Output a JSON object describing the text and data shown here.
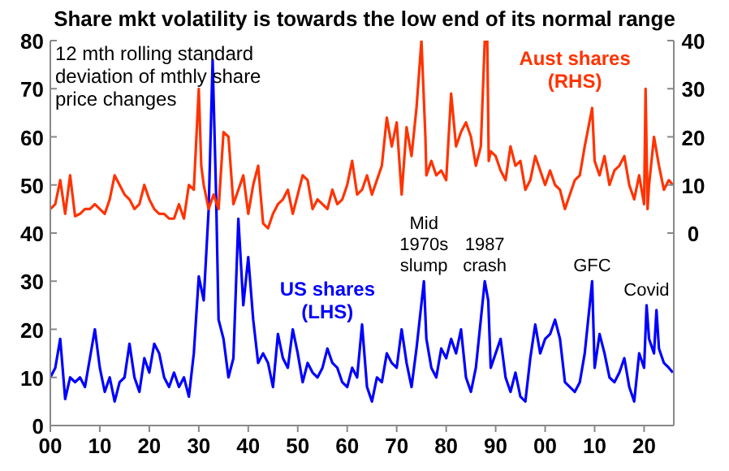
{
  "chart_data": {
    "type": "line",
    "title": "Share mkt volatility is towards the low end of its normal range",
    "xlim": [
      1900,
      2026
    ],
    "xticks": [
      {
        "value": 1900,
        "label": "00"
      },
      {
        "value": 1910,
        "label": "10"
      },
      {
        "value": 1920,
        "label": "20"
      },
      {
        "value": 1930,
        "label": "30"
      },
      {
        "value": 1940,
        "label": "40"
      },
      {
        "value": 1950,
        "label": "50"
      },
      {
        "value": 1960,
        "label": "60"
      },
      {
        "value": 1970,
        "label": "70"
      },
      {
        "value": 1980,
        "label": "80"
      },
      {
        "value": 1990,
        "label": "90"
      },
      {
        "value": 2000,
        "label": "00"
      },
      {
        "value": 2010,
        "label": "10"
      },
      {
        "value": 2020,
        "label": "20"
      }
    ],
    "ylim": [
      0,
      80
    ],
    "yticks": [
      0,
      10,
      20,
      30,
      40,
      50,
      60,
      70,
      80
    ],
    "y2lim": [
      -40,
      40
    ],
    "y2ticks": [
      0,
      10,
      20,
      30,
      40
    ],
    "grid": false,
    "annotations": [
      "12 mth rolling standard deviation of mthly share price changes",
      {
        "text": "Mid 1970s slump",
        "x": 1975.5,
        "y": 30
      },
      {
        "text": "1987 crash",
        "x": 1987.8,
        "y": 30
      },
      {
        "text": "GFC",
        "x": 2009.5,
        "y": 30
      },
      {
        "text": "Covid",
        "x": 2020.5,
        "y": 25
      }
    ],
    "series": [
      {
        "name": "US shares (LHS)",
        "color": "#0000ff",
        "x": [
          1900,
          1901,
          1902,
          1903,
          1904,
          1905,
          1906,
          1907,
          1908,
          1909,
          1910,
          1911,
          1912,
          1913,
          1914,
          1915,
          1916,
          1917,
          1918,
          1919,
          1920,
          1921,
          1922,
          1923,
          1924,
          1925,
          1926,
          1927,
          1928,
          1929,
          1930,
          1931,
          1932,
          1932.8,
          1933.5,
          1934,
          1935,
          1936,
          1937,
          1938,
          1939,
          1940,
          1941,
          1942,
          1943,
          1944,
          1945,
          1946,
          1947,
          1948,
          1949,
          1950,
          1951,
          1952,
          1953,
          1954,
          1955,
          1956,
          1957,
          1958,
          1959,
          1960,
          1961,
          1962,
          1963,
          1964,
          1965,
          1966,
          1967,
          1968,
          1969,
          1970,
          1971,
          1972,
          1973,
          1974,
          1975.5,
          1976,
          1977,
          1978,
          1979,
          1980,
          1981,
          1982,
          1983,
          1984,
          1985,
          1986,
          1987.8,
          1988.5,
          1989,
          1990,
          1991,
          1992,
          1993,
          1994,
          1995,
          1996,
          1997,
          1998,
          1999,
          2000,
          2001,
          2002,
          2003,
          2004,
          2005,
          2006,
          2007,
          2008,
          2009.5,
          2010,
          2011,
          2012,
          2013,
          2014,
          2015,
          2016,
          2017,
          2018,
          2019,
          2020,
          2020.5,
          2021,
          2022,
          2022.5,
          2023,
          2024,
          2025,
          2025.8
        ],
        "values": [
          10,
          12,
          18,
          5.5,
          10,
          9,
          10,
          8,
          14,
          20,
          12,
          7,
          10,
          5,
          9,
          10,
          17,
          10,
          7,
          14,
          11,
          17,
          15,
          10,
          8,
          11,
          8,
          10,
          6,
          15,
          31,
          26,
          45,
          76,
          48,
          22,
          18,
          10,
          14,
          43,
          25,
          35,
          22,
          13,
          15,
          13,
          8,
          19,
          14,
          12,
          20,
          15,
          9,
          13,
          11,
          10,
          12,
          16,
          13,
          12,
          9,
          8,
          12,
          10,
          21,
          8,
          5,
          10,
          9,
          15,
          13,
          12,
          20,
          13,
          8,
          16,
          30,
          18,
          12,
          10,
          16,
          14,
          18,
          15,
          20,
          10,
          7,
          12,
          30,
          26,
          12,
          15,
          18,
          10,
          7,
          11,
          6,
          5,
          14,
          21,
          15,
          18,
          19,
          22,
          18,
          9,
          8,
          7,
          9,
          15,
          30,
          12,
          19,
          15,
          10,
          9,
          11,
          14,
          8,
          5,
          15,
          12,
          25,
          18,
          15,
          24,
          16,
          13,
          12,
          11
        ]
      },
      {
        "name": "Aust shares (RHS)",
        "color": "#ff3300",
        "axis": "y2",
        "x": [
          1900,
          1901,
          1902,
          1903,
          1904,
          1905,
          1906,
          1907,
          1908,
          1909,
          1910,
          1911,
          1912,
          1913,
          1914,
          1915,
          1916,
          1917,
          1918,
          1919,
          1920,
          1921,
          1922,
          1923,
          1924,
          1925,
          1926,
          1927,
          1928,
          1929,
          1930,
          1930.5,
          1931,
          1932,
          1933,
          1934,
          1935,
          1936,
          1937,
          1938,
          1939,
          1940,
          1941,
          1942,
          1943,
          1944,
          1945,
          1946,
          1947,
          1948,
          1949,
          1950,
          1951,
          1952,
          1953,
          1954,
          1955,
          1956,
          1957,
          1958,
          1959,
          1960,
          1961,
          1962,
          1963,
          1964,
          1965,
          1966,
          1967,
          1968,
          1969,
          1970,
          1971,
          1972,
          1973,
          1974,
          1975,
          1975.8,
          1976,
          1977,
          1978,
          1979,
          1980,
          1981,
          1982,
          1983,
          1984,
          1985,
          1986,
          1987,
          1987.8,
          1988.3,
          1988.6,
          1989,
          1990,
          1991,
          1992,
          1993,
          1994,
          1995,
          1996,
          1997,
          1998,
          1999,
          2000,
          2001,
          2002,
          2003,
          2004,
          2005,
          2006,
          2007,
          2008,
          2009.5,
          2010,
          2011,
          2012,
          2013,
          2014,
          2015,
          2016,
          2017,
          2018,
          2019,
          2020,
          2020.3,
          2020.7,
          2021,
          2022,
          2023,
          2024,
          2025,
          2025.8
        ],
        "values": [
          5,
          6,
          11,
          4,
          12,
          3.5,
          4,
          5,
          5,
          6,
          5,
          4,
          7,
          12,
          10,
          8,
          7,
          5,
          6,
          10,
          7,
          5,
          4,
          4,
          3,
          3,
          6,
          3,
          10,
          9,
          30,
          14,
          10,
          5,
          8,
          5,
          21,
          20,
          6,
          9,
          12,
          4,
          10,
          14,
          2,
          1,
          4,
          6,
          7,
          9,
          4,
          8,
          12,
          11,
          5,
          7,
          6,
          5,
          9,
          6,
          7,
          10,
          15,
          8,
          9,
          12,
          8,
          11,
          14,
          24,
          18,
          23,
          8,
          22,
          16,
          26,
          40,
          20,
          12,
          15,
          12,
          13,
          11,
          29,
          18,
          21,
          23,
          20,
          14,
          18,
          40,
          40,
          15,
          17,
          16,
          13,
          11,
          18,
          14,
          15,
          9,
          11,
          16,
          13,
          10,
          13,
          10,
          9,
          5,
          8,
          11,
          12,
          18,
          26,
          15,
          12,
          16,
          10,
          13,
          14,
          16,
          10,
          7,
          12,
          6,
          30,
          5,
          10,
          20,
          14,
          9,
          11,
          10
        ]
      }
    ]
  }
}
